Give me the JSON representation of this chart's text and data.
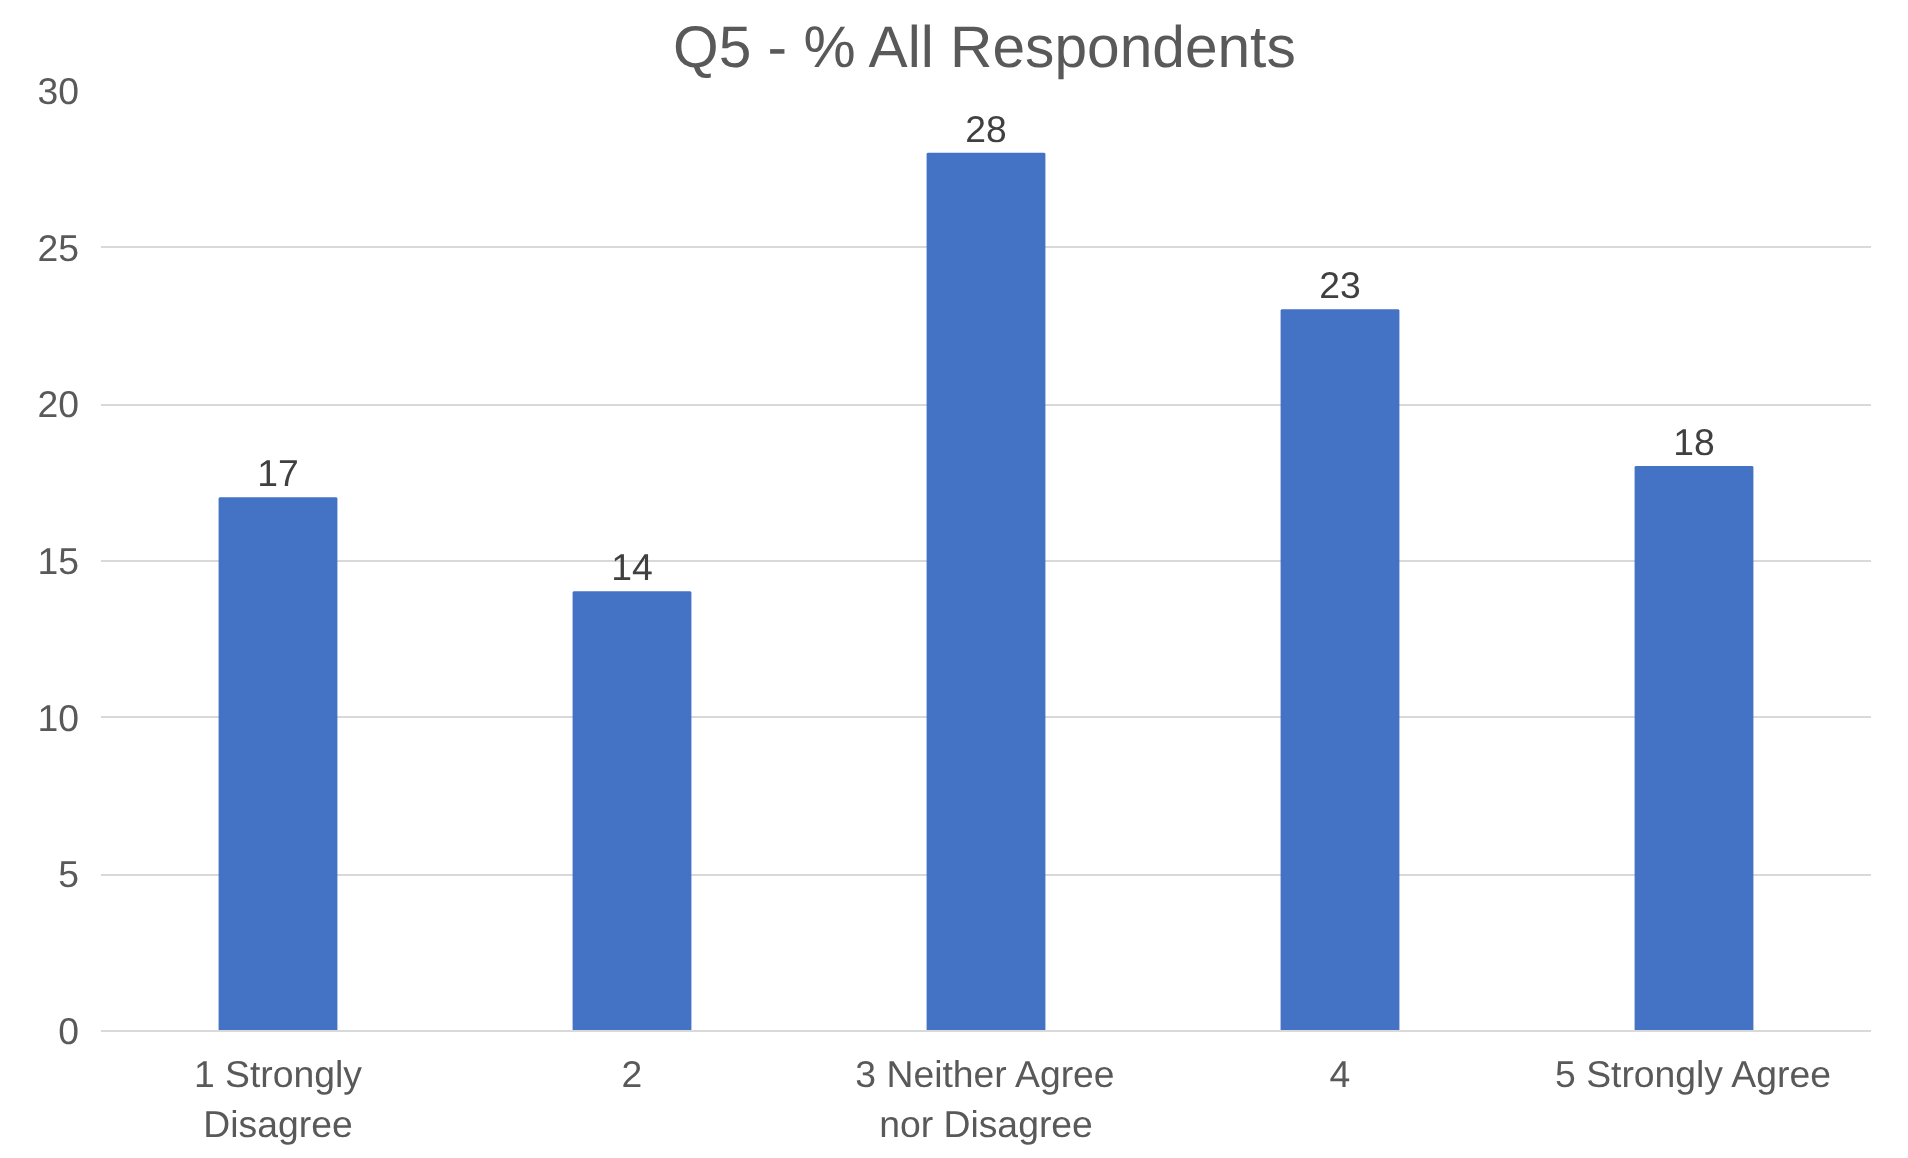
{
  "chart_data": {
    "type": "bar",
    "title": "Q5 - % All Respondents",
    "categories": [
      "1 Strongly\nDisagree",
      "2",
      "3 Neither Agree\nnor Disagree",
      "4",
      "5 Strongly Agree"
    ],
    "values": [
      17,
      14,
      28,
      23,
      18
    ],
    "color": "#4472c4",
    "ylim": [
      0,
      30
    ],
    "yticks": [
      0,
      5,
      10,
      15,
      20,
      25,
      30
    ],
    "grid": "y",
    "data_labels": true
  }
}
